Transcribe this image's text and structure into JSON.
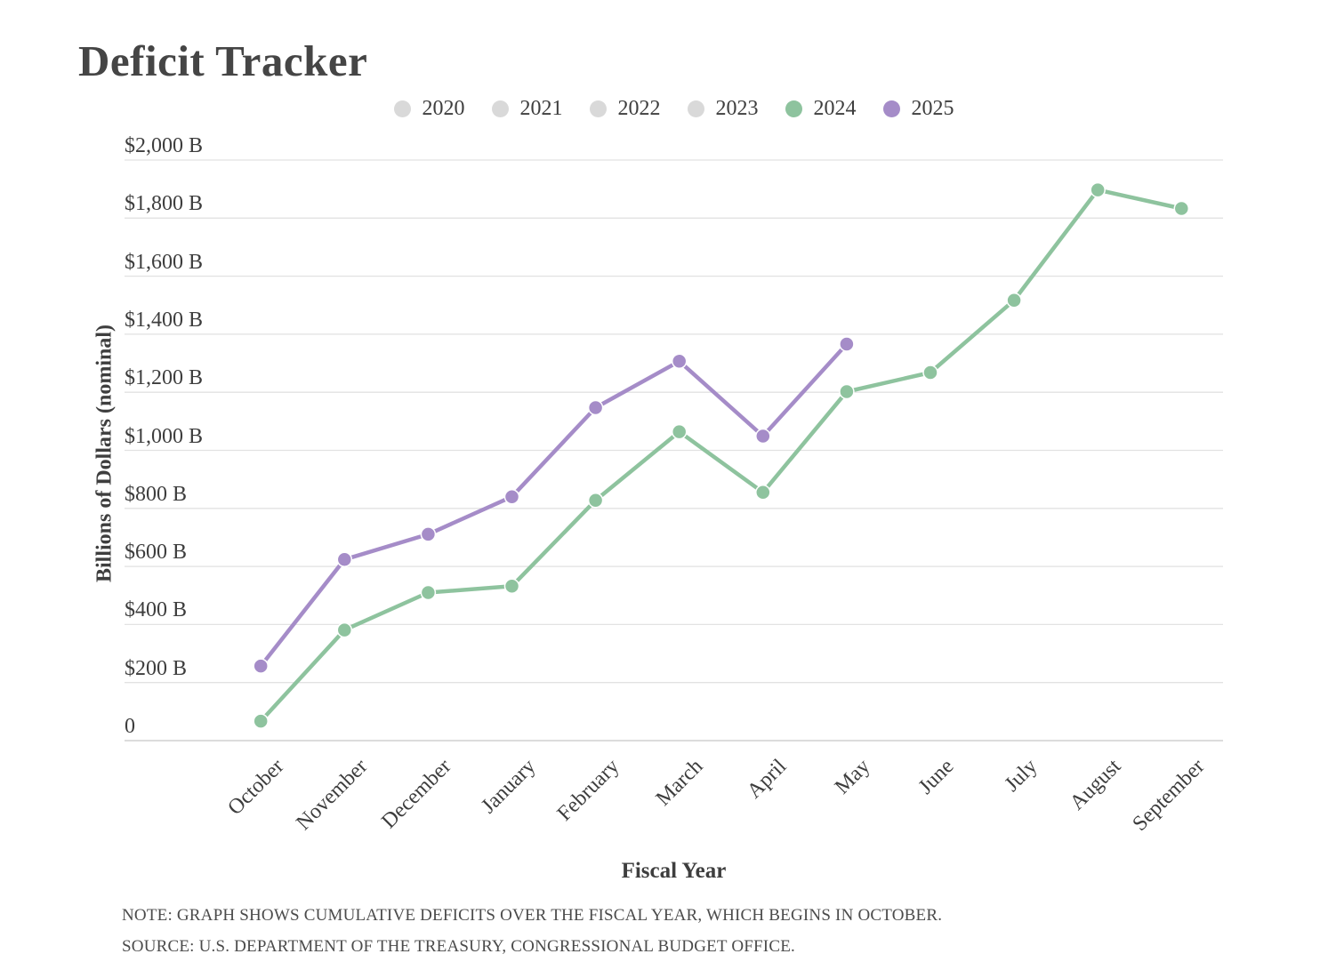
{
  "title": "Deficit Tracker",
  "legend": {
    "items": [
      {
        "label": "2020",
        "color": "#D9D9D9",
        "active": false
      },
      {
        "label": "2021",
        "color": "#D9D9D9",
        "active": false
      },
      {
        "label": "2022",
        "color": "#D9D9D9",
        "active": false
      },
      {
        "label": "2023",
        "color": "#D9D9D9",
        "active": false
      },
      {
        "label": "2024",
        "color": "#8EC39E",
        "active": true
      },
      {
        "label": "2025",
        "color": "#A58CC8",
        "active": true
      }
    ]
  },
  "axes": {
    "y_title": "Billions of Dollars (nominal)",
    "x_title": "Fiscal Year",
    "y_tick_labels": [
      "$2,000 B",
      "$1,800 B",
      "$1,600 B",
      "$1,400 B",
      "$1,200 B",
      "$1,000 B",
      "$800 B",
      "$600 B",
      "$400 B",
      "$200 B",
      "0"
    ],
    "x_tick_labels": [
      "October",
      "November",
      "December",
      "January",
      "February",
      "March",
      "April",
      "May",
      "June",
      "July",
      "August",
      "September"
    ]
  },
  "notes": {
    "note": "NOTE: GRAPH SHOWS CUMULATIVE DEFICITS OVER THE FISCAL YEAR, WHICH BEGINS IN OCTOBER.",
    "source": "SOURCE: U.S. DEPARTMENT OF THE TREASURY, CONGRESSIONAL BUDGET OFFICE."
  },
  "colors": {
    "series_2024": "#8EC39E",
    "series_2025": "#A58CC8",
    "inactive_legend": "#D9D9D9",
    "gridline": "#E2E2E2",
    "zero_line": "#C6C6C6",
    "text": "#3E3E3E"
  },
  "chart_data": {
    "type": "line",
    "title": "Deficit Tracker",
    "xlabel": "Fiscal Year",
    "ylabel": "Billions of Dollars (nominal)",
    "categories": [
      "October",
      "November",
      "December",
      "January",
      "February",
      "March",
      "April",
      "May",
      "June",
      "July",
      "August",
      "September"
    ],
    "series": [
      {
        "name": "2024",
        "color": "#8EC39E",
        "values": [
          67,
          381,
          510,
          532,
          828,
          1064,
          855,
          1202,
          1268,
          1517,
          1897,
          1833
        ]
      },
      {
        "name": "2025",
        "color": "#A58CC8",
        "values": [
          257,
          624,
          711,
          840,
          1147,
          1307,
          1049,
          1366
        ]
      }
    ],
    "hidden_series": [
      "2020",
      "2021",
      "2022",
      "2023"
    ],
    "ylim": [
      0,
      2000
    ],
    "ytick_step": 200,
    "grid": true,
    "legend_position": "top",
    "unit": "billions of nominal dollars, cumulative over fiscal year"
  }
}
